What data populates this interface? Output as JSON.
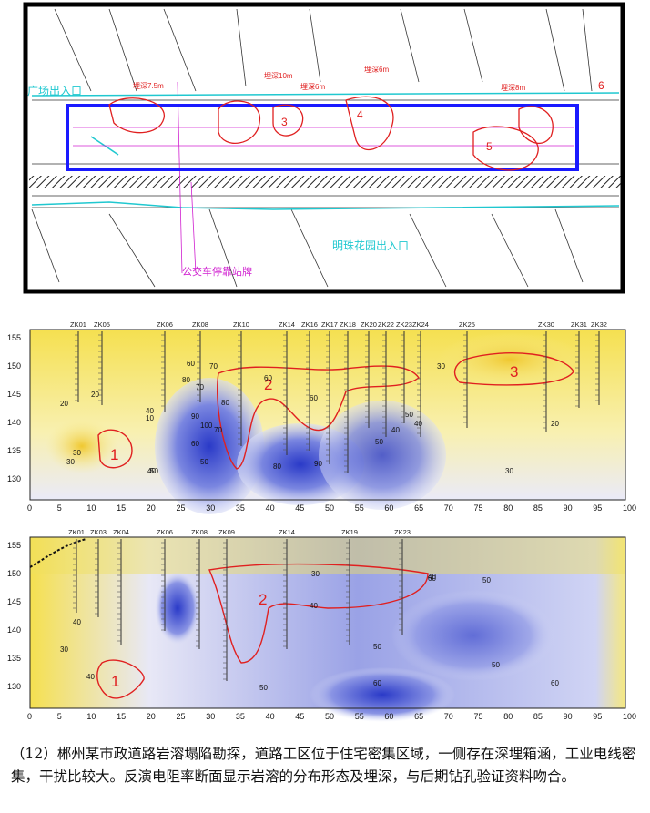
{
  "map": {
    "label_entrance_1": "广场出入口",
    "label_entrance_2": "明珠花园出入口",
    "label_bus_stop": "公交车停靠站牌",
    "label_zone_4": "4",
    "label_zone_5": "5",
    "label_zone_3": "3",
    "label_zone_6": "6",
    "label_depth_1": "埋深7.5m",
    "label_depth_2": "埋深10m",
    "label_depth_3": "埋深6m",
    "label_depth_4": "埋深6m",
    "label_depth_5": "埋深8m",
    "colors": {
      "box": "#1a1aff",
      "anomaly": "#e02020",
      "magenta": "#d020d0",
      "cyan": "#20c8d0"
    }
  },
  "section_a": {
    "boreholes": [
      "ZK01",
      "ZK05",
      "ZK06",
      "ZK08",
      "ZK10",
      "ZK14",
      "ZK16",
      "ZK17",
      "ZK18",
      "ZK20",
      "ZK22",
      "ZK23",
      "ZK24",
      "ZK25",
      "ZK30",
      "ZK31",
      "ZK32"
    ],
    "y_ticks": [
      "155",
      "150",
      "145",
      "140",
      "135",
      "130"
    ],
    "x_ticks": [
      "0",
      "5",
      "10",
      "15",
      "20",
      "25",
      "30",
      "35",
      "40",
      "45",
      "50",
      "55",
      "60",
      "65",
      "70",
      "75",
      "80",
      "85",
      "90",
      "95",
      "100"
    ],
    "zones": [
      "1",
      "2",
      "3"
    ],
    "contours": [
      "20",
      "30",
      "40",
      "50",
      "60",
      "70",
      "80",
      "90",
      "10",
      "20",
      "30",
      "40",
      "50",
      "60",
      "70",
      "80",
      "30",
      "30",
      "20",
      "40",
      "50",
      "60",
      "40",
      "50",
      "60",
      "70",
      "80",
      "90",
      "100"
    ]
  },
  "section_b": {
    "boreholes": [
      "ZK01",
      "ZK03",
      "ZK04",
      "ZK06",
      "ZK08",
      "ZK09",
      "ZK14",
      "ZK19",
      "ZK23"
    ],
    "y_ticks": [
      "155",
      "150",
      "145",
      "140",
      "135",
      "130"
    ],
    "x_ticks": [
      "0",
      "5",
      "10",
      "15",
      "20",
      "25",
      "30",
      "35",
      "40",
      "45",
      "50",
      "55",
      "60",
      "65",
      "70",
      "75",
      "80",
      "85",
      "90",
      "95",
      "100"
    ],
    "zones": [
      "1",
      "2"
    ],
    "contours": [
      "30",
      "40",
      "50",
      "60",
      "40",
      "30",
      "40",
      "50",
      "60",
      "50",
      "60",
      "50",
      "40"
    ]
  },
  "caption": "（12）郴州某市政道路岩溶塌陷勘探，道路工区位于住宅密集区域，一侧存在深埋箱涵，工业电线密集，干扰比较大。反演电阻率断面显示岩溶的分布形态及埋深，与后期钻孔验证资料吻合。"
}
